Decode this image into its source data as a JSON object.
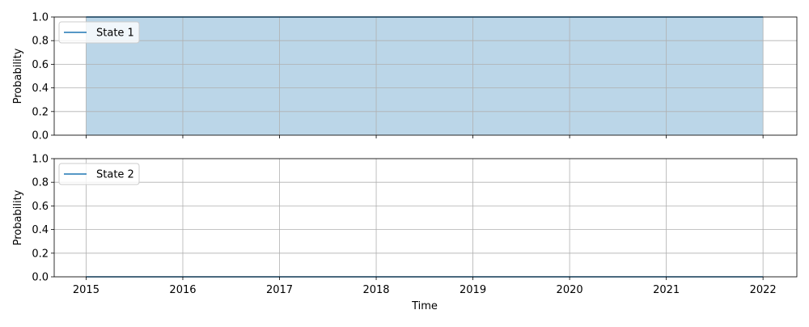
{
  "chart_data": [
    {
      "type": "area",
      "x": [
        "2015",
        "2016",
        "2017",
        "2018",
        "2019",
        "2020",
        "2021",
        "2022"
      ],
      "series": [
        {
          "name": "State 1",
          "values": [
            1,
            1,
            1,
            1,
            1,
            1,
            1,
            1
          ],
          "color": "#1f77b4",
          "fill_color": "#1f77b4",
          "fill_opacity": 0.3
        }
      ],
      "xlabel": "",
      "ylabel": "Probability",
      "xlim": [
        2014.67,
        2022.35
      ],
      "ylim": [
        0,
        1
      ],
      "yticks": [
        "0.0",
        "0.2",
        "0.4",
        "0.6",
        "0.8",
        "1.0"
      ],
      "xticks": [
        "2015",
        "2016",
        "2017",
        "2018",
        "2019",
        "2020",
        "2021",
        "2022"
      ],
      "show_xtick_labels": false,
      "grid": true,
      "legend": "upper-left"
    },
    {
      "type": "area",
      "x": [
        "2015",
        "2016",
        "2017",
        "2018",
        "2019",
        "2020",
        "2021",
        "2022"
      ],
      "series": [
        {
          "name": "State 2",
          "values": [
            0,
            0,
            0,
            0,
            0,
            0,
            0,
            0
          ],
          "color": "#1f77b4",
          "fill_color": "#1f77b4",
          "fill_opacity": 0.3
        }
      ],
      "xlabel": "Time",
      "ylabel": "Probability",
      "xlim": [
        2014.67,
        2022.35
      ],
      "ylim": [
        0,
        1
      ],
      "yticks": [
        "0.0",
        "0.2",
        "0.4",
        "0.6",
        "0.8",
        "1.0"
      ],
      "xticks": [
        "2015",
        "2016",
        "2017",
        "2018",
        "2019",
        "2020",
        "2021",
        "2022"
      ],
      "show_xtick_labels": true,
      "grid": true,
      "legend": "upper-left"
    }
  ]
}
